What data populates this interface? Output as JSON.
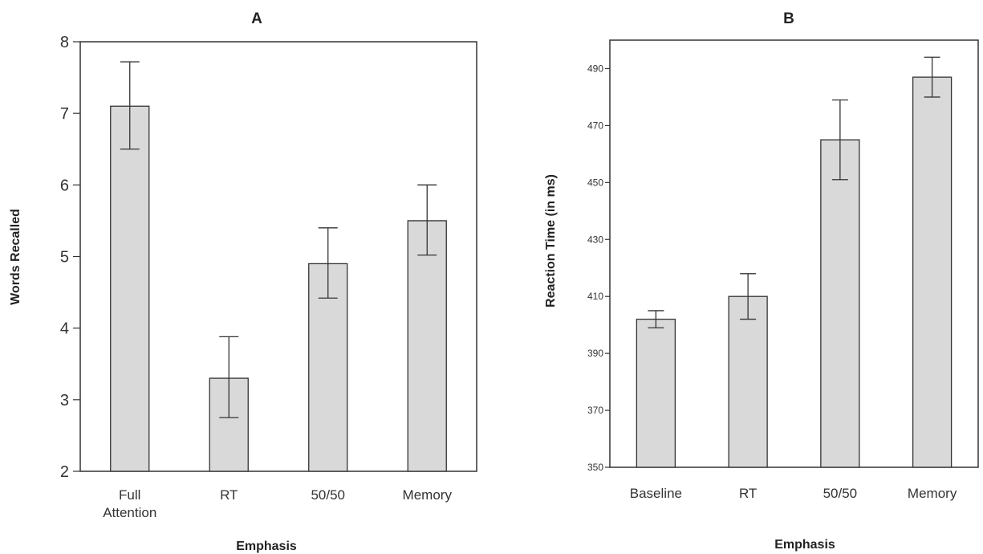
{
  "chart_data": [
    {
      "type": "bar",
      "title": "A",
      "xlabel": "Emphasis",
      "ylabel": "Words Recalled",
      "categories": [
        [
          "Full",
          "Attention"
        ],
        [
          "RT"
        ],
        [
          "50/50"
        ],
        [
          "Memory"
        ]
      ],
      "values": [
        7.1,
        3.3,
        4.9,
        5.5
      ],
      "error_low": [
        6.5,
        2.75,
        4.42,
        5.02
      ],
      "error_high": [
        7.72,
        3.88,
        5.4,
        6.0
      ],
      "ylim": [
        2,
        8
      ],
      "yticks": [
        2,
        3,
        4,
        5,
        6,
        7,
        8
      ],
      "grid": false,
      "bar_color": "#d9d9d9",
      "legend": "none"
    },
    {
      "type": "bar",
      "title": "B",
      "xlabel": "Emphasis",
      "ylabel": "Reaction Time (in ms)",
      "categories": [
        [
          "Baseline"
        ],
        [
          "RT"
        ],
        [
          "50/50"
        ],
        [
          "Memory"
        ]
      ],
      "values": [
        402,
        410,
        465,
        487
      ],
      "error_low": [
        399,
        402,
        451,
        480
      ],
      "error_high": [
        405,
        418,
        479,
        494
      ],
      "ylim": [
        350,
        500
      ],
      "yticks": [
        350,
        370,
        390,
        410,
        430,
        450,
        470,
        490
      ],
      "grid": false,
      "bar_color": "#d9d9d9",
      "legend": "none"
    }
  ]
}
